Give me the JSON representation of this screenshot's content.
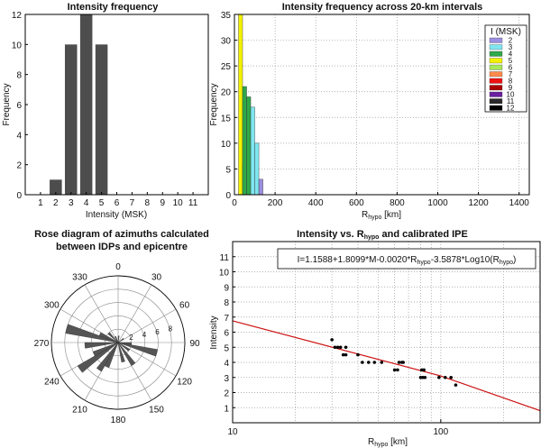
{
  "chart_data": [
    {
      "type": "bar",
      "title": "Intensity frequency",
      "xlabel": "Intensity (MSK)",
      "ylabel": "Frequency",
      "categories": [
        "1",
        "2",
        "3",
        "4",
        "5",
        "6",
        "7",
        "8",
        "9",
        "10",
        "11"
      ],
      "values": [
        0,
        1,
        10,
        12,
        10,
        0,
        0,
        0,
        0,
        0,
        0
      ],
      "ylim": [
        0,
        12
      ],
      "yticks": [
        0,
        2,
        4,
        6,
        8,
        10,
        12
      ],
      "bar_color": "#4d4d4d"
    },
    {
      "type": "bar",
      "title": "Intensity frequency across 20-km intervals",
      "xlabel_main": "R",
      "xlabel_sub": "hypo",
      "xlabel_unit": " [km]",
      "ylabel": "Frequency",
      "xlim": [
        0,
        1450
      ],
      "ylim": [
        0,
        35
      ],
      "xticks": [
        0,
        200,
        400,
        600,
        800,
        1000,
        1200,
        1400
      ],
      "yticks": [
        0,
        5,
        10,
        15,
        20,
        25,
        30,
        35
      ],
      "bin_width": 20,
      "legend_title": "I (MSK)",
      "legend_position": "top-right",
      "legend": [
        {
          "label": "2",
          "color": "#9a8fe0"
        },
        {
          "label": "3",
          "color": "#7fe6f0"
        },
        {
          "label": "4",
          "color": "#2fa84a"
        },
        {
          "label": "5",
          "color": "#f2f200"
        },
        {
          "label": "6",
          "color": "#a8e85a"
        },
        {
          "label": "7",
          "color": "#ff8a4c"
        },
        {
          "label": "8",
          "color": "#ee1111"
        },
        {
          "label": "9",
          "color": "#aa0000"
        },
        {
          "label": "10",
          "color": "#6a1f9e"
        },
        {
          "label": "11",
          "color": "#2a2a2a"
        },
        {
          "label": "12",
          "color": "#000000"
        }
      ],
      "bars": [
        {
          "x0": 20,
          "x1": 40,
          "value": 35,
          "color": "#f2f200"
        },
        {
          "x0": 40,
          "x1": 60,
          "value": 6,
          "color": "#f2f200"
        },
        {
          "x0": 40,
          "x1": 60,
          "value": 21,
          "color": "#2fa84a"
        },
        {
          "x0": 60,
          "x1": 80,
          "value": 19,
          "color": "#2fa84a"
        },
        {
          "x0": 80,
          "x1": 100,
          "value": 17,
          "color": "#7fe6f0"
        },
        {
          "x0": 100,
          "x1": 120,
          "value": 10,
          "color": "#7fe6f0"
        },
        {
          "x0": 120,
          "x1": 140,
          "value": 3,
          "color": "#9a8fe0"
        }
      ]
    },
    {
      "type": "rose",
      "title_line1": "Rose diagram of azimuths calculated",
      "title_line2": "between  IDPs and epicentre",
      "angle_labels": [
        {
          "deg": 0,
          "label": "0"
        },
        {
          "deg": 30,
          "label": "30"
        },
        {
          "deg": 60,
          "label": "60"
        },
        {
          "deg": 90,
          "label": "90"
        },
        {
          "deg": 120,
          "label": "120"
        },
        {
          "deg": 150,
          "label": "150"
        },
        {
          "deg": 180,
          "label": "180"
        },
        {
          "deg": 210,
          "label": "210"
        },
        {
          "deg": 240,
          "label": "240"
        },
        {
          "deg": 270,
          "label": "270"
        },
        {
          "deg": 300,
          "label": "300"
        },
        {
          "deg": 330,
          "label": "330"
        }
      ],
      "radial_ticks": [
        "2",
        "4",
        "6",
        "8"
      ],
      "rmax": 10,
      "sector_width_deg": 10,
      "fill_color": "#555555",
      "sectors": [
        {
          "deg": 5,
          "value": 1
        },
        {
          "deg": 55,
          "value": 1
        },
        {
          "deg": 95,
          "value": 2
        },
        {
          "deg": 105,
          "value": 6
        },
        {
          "deg": 125,
          "value": 2
        },
        {
          "deg": 145,
          "value": 4
        },
        {
          "deg": 165,
          "value": 3
        },
        {
          "deg": 205,
          "value": 4
        },
        {
          "deg": 215,
          "value": 5
        },
        {
          "deg": 235,
          "value": 7
        },
        {
          "deg": 245,
          "value": 4
        },
        {
          "deg": 265,
          "value": 5
        },
        {
          "deg": 285,
          "value": 8
        },
        {
          "deg": 295,
          "value": 3
        },
        {
          "deg": 315,
          "value": 2
        },
        {
          "deg": 335,
          "value": 1
        }
      ]
    },
    {
      "type": "scatter",
      "title_pre": "Intensity vs. R",
      "title_sub": "hypo",
      "title_post": " and calibrated IPE",
      "xlabel_main": "R",
      "xlabel_sub": "hypo",
      "xlabel_unit": " [km]",
      "ylabel": "Intensity",
      "x_scale": "log",
      "xlim": [
        10,
        300
      ],
      "ylim": [
        0,
        12
      ],
      "xticks": [
        10,
        100
      ],
      "yticks": [
        1,
        2,
        3,
        4,
        5,
        6,
        7,
        8,
        9,
        10,
        11
      ],
      "annotation_pre": "I=1.1588+1.8099*M-0.0020*R",
      "annotation_sub1": "hypo",
      "annotation_mid": "-3.5878*Log10(R",
      "annotation_sub2": "hypo",
      "annotation_post": ")",
      "line_color": "#cc1111",
      "line_points": [
        [
          10,
          6.75
        ],
        [
          100,
          3.1
        ],
        [
          300,
          0.8
        ]
      ],
      "points": [
        [
          30,
          5.5
        ],
        [
          31,
          5.0
        ],
        [
          32,
          5.0
        ],
        [
          33,
          5.0
        ],
        [
          34,
          4.5
        ],
        [
          35,
          4.5
        ],
        [
          35,
          5.0
        ],
        [
          40,
          4.5
        ],
        [
          42,
          4.0
        ],
        [
          45,
          4.0
        ],
        [
          48,
          4.0
        ],
        [
          52,
          4.0
        ],
        [
          60,
          3.5
        ],
        [
          62,
          3.5
        ],
        [
          63,
          4.0
        ],
        [
          65,
          4.0
        ],
        [
          66,
          4.0
        ],
        [
          80,
          3.0
        ],
        [
          81,
          3.5
        ],
        [
          82,
          3.0
        ],
        [
          83,
          3.5
        ],
        [
          84,
          3.0
        ],
        [
          98,
          3.0
        ],
        [
          105,
          3.0
        ],
        [
          112,
          3.0
        ],
        [
          118,
          2.5
        ]
      ]
    }
  ]
}
